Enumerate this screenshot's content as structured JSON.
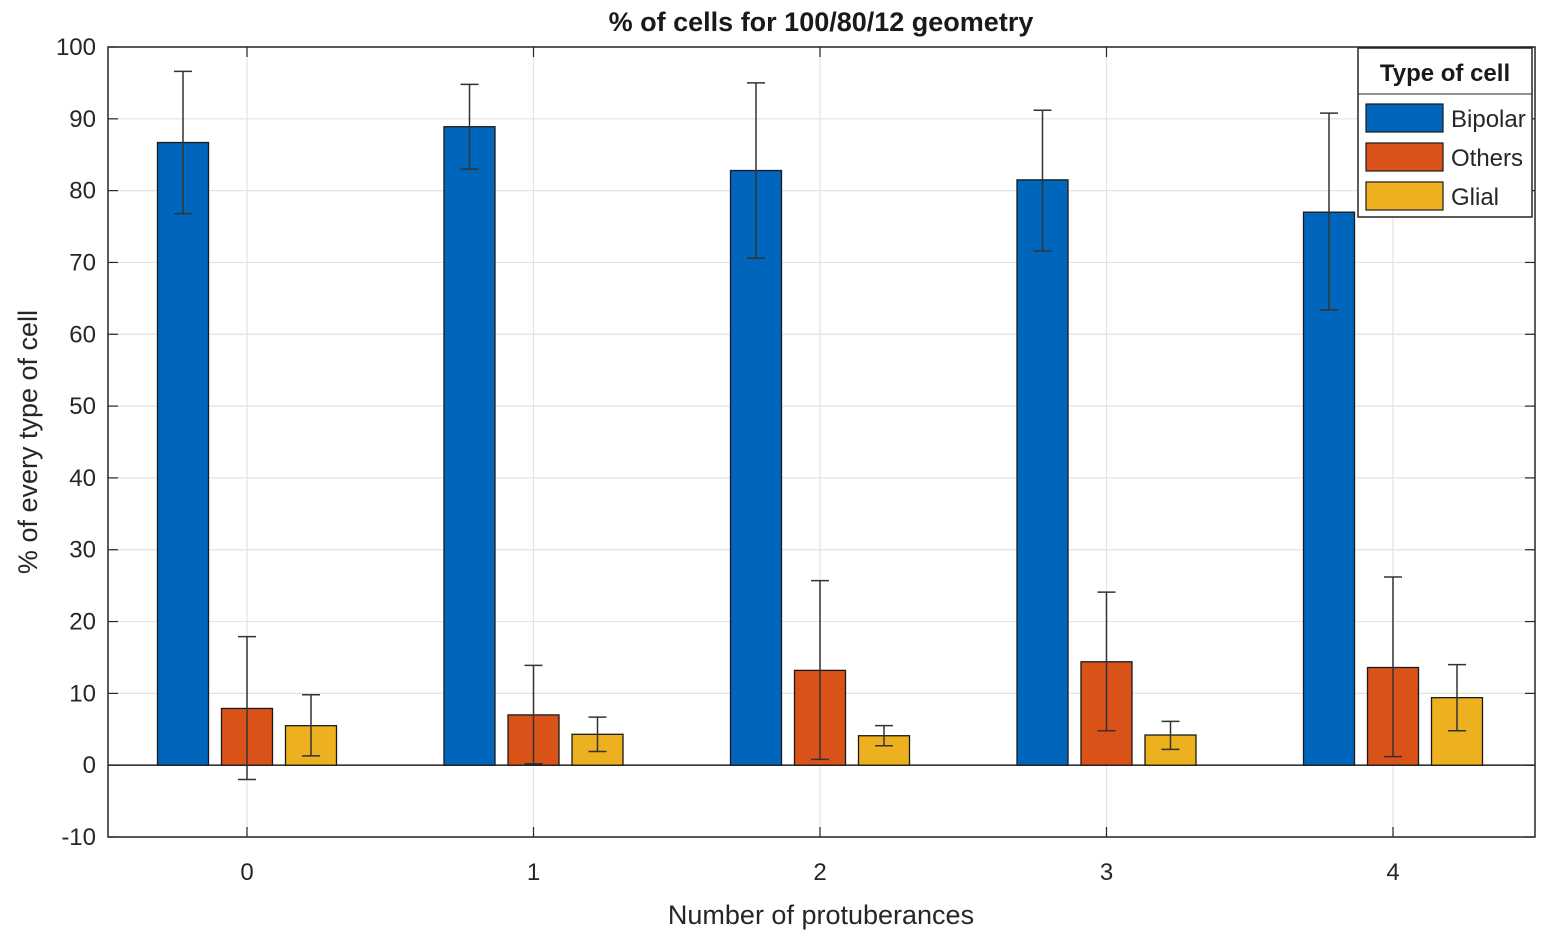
{
  "chart_data": {
    "type": "bar",
    "title": "% of cells for 100/80/12 geometry",
    "xlabel": "Number of protuberances",
    "ylabel": "% of every type of cell",
    "categories": [
      "0",
      "1",
      "2",
      "3",
      "4"
    ],
    "ylim": [
      -10,
      100
    ],
    "yticks": [
      "-10",
      "0",
      "10",
      "20",
      "30",
      "40",
      "50",
      "60",
      "70",
      "80",
      "90",
      "100"
    ],
    "grid": true,
    "legend_title": "Type of cell",
    "legend_position": "top-right",
    "series": [
      {
        "name": "Bipolar",
        "color": "#0066bb",
        "values": [
          86.7,
          88.9,
          82.8,
          81.5,
          77.0
        ],
        "err_low": [
          76.8,
          83.0,
          70.6,
          71.6,
          63.4
        ],
        "err_high": [
          96.6,
          94.8,
          95.0,
          91.2,
          90.8
        ]
      },
      {
        "name": "Others",
        "color": "#d95319",
        "values": [
          7.9,
          7.0,
          13.2,
          14.4,
          13.6
        ],
        "err_low": [
          -2.0,
          0.2,
          0.8,
          4.8,
          1.2
        ],
        "err_high": [
          17.9,
          13.9,
          25.7,
          24.1,
          26.2
        ]
      },
      {
        "name": "Glial",
        "color": "#edb120",
        "values": [
          5.5,
          4.3,
          4.1,
          4.2,
          9.4
        ],
        "err_low": [
          1.3,
          1.9,
          2.7,
          2.2,
          4.8
        ],
        "err_high": [
          9.8,
          6.7,
          5.5,
          6.1,
          14.0
        ]
      }
    ]
  }
}
